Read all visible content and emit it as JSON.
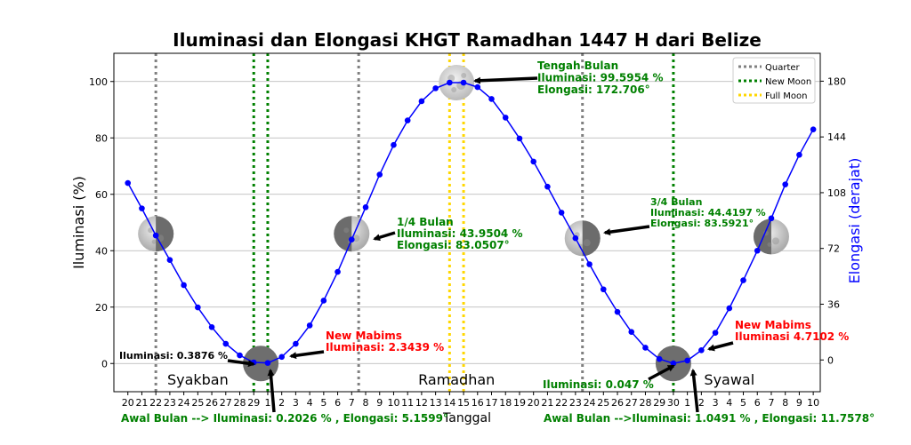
{
  "chart_data": {
    "type": "line",
    "title": "Iluminasi dan Elongasi KHGT Ramadhan 1447 H dari Belize",
    "xlabel": "Tanggal",
    "ylabel": "Iluminasi (%)",
    "ylabel_right": "Elongasi (derajat)",
    "ylim": [
      -10,
      110
    ],
    "ylim_right": [
      -20.5,
      198
    ],
    "yticks": [
      0,
      20,
      40,
      60,
      80,
      100
    ],
    "yticks_right": [
      0,
      36,
      72,
      108,
      144,
      180
    ],
    "xtick_labels": [
      "20",
      "21",
      "22",
      "23",
      "24",
      "25",
      "26",
      "27",
      "28",
      "29",
      "1",
      "2",
      "3",
      "4",
      "5",
      "6",
      "7",
      "8",
      "9",
      "10",
      "11",
      "12",
      "13",
      "14",
      "15",
      "16",
      "17",
      "18",
      "19",
      "20",
      "21",
      "22",
      "23",
      "24",
      "25",
      "26",
      "27",
      "28",
      "29",
      "30",
      "1",
      "2",
      "3",
      "4",
      "5",
      "6",
      "7",
      "8",
      "9",
      "10"
    ],
    "grid": "horizontal",
    "legend_position": "top-right",
    "series": [
      {
        "color": "#0000ff",
        "x": [
          0,
          1,
          2,
          3,
          4,
          5,
          6,
          7,
          8,
          9,
          10,
          11,
          12,
          13,
          14,
          15,
          16,
          17,
          18,
          19,
          20,
          21,
          22,
          23,
          24,
          25,
          26,
          27,
          28,
          29,
          30,
          31,
          32,
          33,
          34,
          35,
          36,
          37,
          38,
          39,
          40,
          41,
          42,
          43,
          44,
          45,
          46,
          47,
          48,
          49
        ],
        "values": [
          64.0,
          55.0,
          45.4,
          36.7,
          27.8,
          19.9,
          12.9,
          7.0,
          2.9,
          0.39,
          0.2,
          2.34,
          7.0,
          13.5,
          22.3,
          32.5,
          43.95,
          55.4,
          67.0,
          77.5,
          86.2,
          93.0,
          97.6,
          99.6,
          99.6,
          98.0,
          93.8,
          87.2,
          79.8,
          71.6,
          62.7,
          53.5,
          44.42,
          35.2,
          26.3,
          18.3,
          11.2,
          5.6,
          1.6,
          0.047,
          1.05,
          4.71,
          10.9,
          19.6,
          29.5,
          40.0,
          51.5,
          63.5,
          74.0,
          83.0
        ]
      }
    ],
    "vlines": [
      {
        "label": "Quarter",
        "color": "#808080",
        "x": [
          2,
          16.5,
          32.5
        ]
      },
      {
        "label": "New Moon",
        "color": "#008000",
        "x": [
          9,
          10,
          39
        ]
      },
      {
        "label": "Full Moon",
        "color": "#ffd700",
        "x": [
          23,
          24
        ]
      }
    ],
    "month_labels": [
      {
        "text": "Syakban",
        "x": 5
      },
      {
        "text": "Ramadhan",
        "x": 23.5
      },
      {
        "text": "Syawal",
        "x": 43
      }
    ],
    "moons": [
      {
        "x": 2,
        "y": 46,
        "phase": "last-quarter"
      },
      {
        "x": 9.5,
        "y": 0,
        "phase": "new"
      },
      {
        "x": 16,
        "y": 46,
        "phase": "first-quarter"
      },
      {
        "x": 23.5,
        "y": 99.6,
        "phase": "full"
      },
      {
        "x": 32.5,
        "y": 44.4,
        "phase": "last-quarter"
      },
      {
        "x": 39,
        "y": 0,
        "phase": "new"
      },
      {
        "x": 46,
        "y": 45,
        "phase": "first-quarter"
      }
    ],
    "annotations": [
      {
        "lines": [
          "Tengah Bulan",
          "Iluminasi: 99.5954 %",
          "Elongasi: 172.706°"
        ],
        "color": "#008000"
      },
      {
        "lines": [
          "1/4 Bulan",
          "Iluminasi: 43.9504 %",
          "Elongasi: 83.0507°"
        ],
        "color": "#008000"
      },
      {
        "lines": [
          "3/4 Bulan",
          "Iluminasi: 44.4197 %",
          "Elongasi: 83.5921°"
        ],
        "color": "#008000"
      },
      {
        "lines": [
          "New Mabims",
          "Iluminasi: 2.3439 %"
        ],
        "color": "#ff0000"
      },
      {
        "lines": [
          "New Mabims",
          "Iluminasi 4.7102 %"
        ],
        "color": "#ff0000"
      },
      {
        "lines": [
          "Iluminasi: 0.3876 %"
        ],
        "color": "#000000"
      },
      {
        "lines": [
          "Iluminasi: 0.047 %"
        ],
        "color": "#008000"
      },
      {
        "lines": [
          "Awal Bulan --> Iluminasi: 0.2026 % , Elongasi: 5.1599°"
        ],
        "color": "#008000"
      },
      {
        "lines": [
          "Awal Bulan -->Iluminasi: 1.0491 % , Elongasi: 11.7578°"
        ],
        "color": "#008000"
      }
    ]
  }
}
